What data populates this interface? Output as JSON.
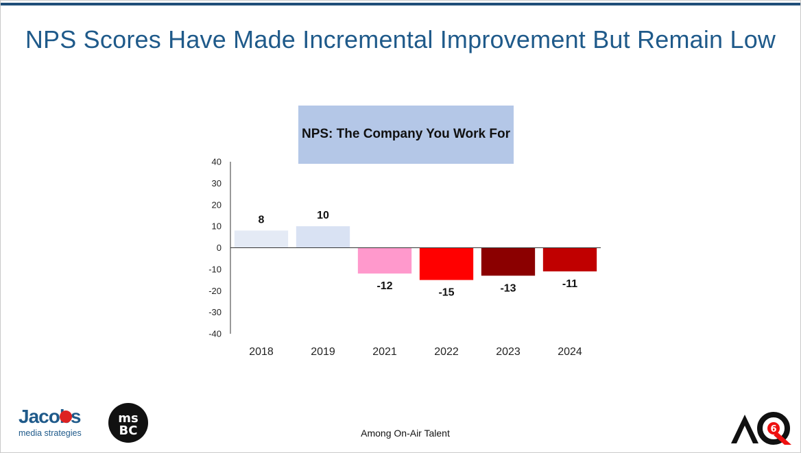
{
  "slide": {
    "title": "NPS Scores Have Made Incremental Improvement But Remain Low",
    "footer_note": "Among On-Air Talent",
    "logos": {
      "jacobs_wordmark": "Jacobs",
      "jacobs_tagline": "media strategies",
      "msbc_mark": "MSBC",
      "aq_mark": "AQ6"
    }
  },
  "chart_data": {
    "type": "bar",
    "title": "NPS: The Company You Work For",
    "xlabel": "",
    "ylabel": "",
    "categories": [
      "2018",
      "2019",
      "2021",
      "2022",
      "2023",
      "2024"
    ],
    "values": [
      8,
      10,
      -12,
      -15,
      -13,
      -11
    ],
    "data_labels": [
      "8",
      "10",
      "-12",
      "-15",
      "-13",
      "-11"
    ],
    "bar_colors": [
      "#e4eaf5",
      "#d9e2f3",
      "#ff99cc",
      "#ff0000",
      "#8b0000",
      "#c00000"
    ],
    "ylim": [
      -40,
      40
    ],
    "yticks": [
      40,
      30,
      20,
      10,
      0,
      -10,
      -20,
      -30,
      -40
    ],
    "grid": false,
    "legend": "none",
    "title_box_color": "#b4c7e7"
  }
}
